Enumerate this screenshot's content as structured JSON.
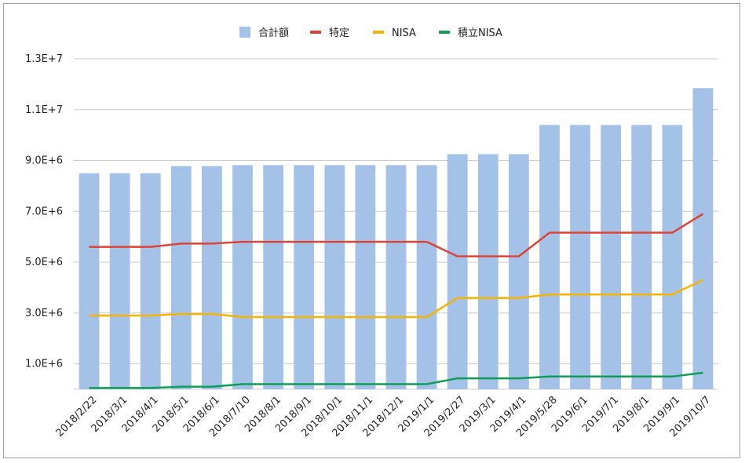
{
  "chart_data": {
    "type": "bar",
    "title": "",
    "xlabel": "",
    "ylabel": "",
    "ylim": [
      0,
      13000000
    ],
    "yticks": [
      1000000,
      3000000,
      5000000,
      7000000,
      9000000,
      11000000,
      13000000
    ],
    "ytick_labels": [
      "1.0E+6",
      "3.0E+6",
      "5.0E+6",
      "7.0E+6",
      "9.0E+6",
      "1.1E+7",
      "1.3E+7"
    ],
    "grid": true,
    "legend_position": "top",
    "categories": [
      "2018/2/22",
      "2018/3/1",
      "2018/4/1",
      "2018/5/1",
      "2018/6/1",
      "2018/7/10",
      "2018/8/1",
      "2018/9/1",
      "2018/10/1",
      "2018/11/1",
      "2018/12/1",
      "2019/1/1",
      "2019/2/27",
      "2019/3/1",
      "2019/4/1",
      "2019/5/28",
      "2019/6/1",
      "2019/7/1",
      "2019/8/1",
      "2019/9/1",
      "2019/10/7"
    ],
    "series": [
      {
        "name": "合計額",
        "kind": "bar",
        "color": "#a4c2e8",
        "values": [
          8500000,
          8500000,
          8500000,
          8780000,
          8780000,
          8820000,
          8820000,
          8820000,
          8820000,
          8820000,
          8820000,
          8820000,
          9250000,
          9250000,
          9250000,
          10400000,
          10400000,
          10400000,
          10400000,
          10400000,
          11850000
        ]
      },
      {
        "name": "特定",
        "kind": "line",
        "color": "#db4437",
        "values": [
          5600000,
          5600000,
          5600000,
          5730000,
          5730000,
          5800000,
          5800000,
          5800000,
          5800000,
          5800000,
          5800000,
          5800000,
          5230000,
          5230000,
          5230000,
          6160000,
          6160000,
          6160000,
          6160000,
          6160000,
          6900000
        ]
      },
      {
        "name": "NISA",
        "kind": "line",
        "color": "#f4b400",
        "values": [
          2900000,
          2900000,
          2900000,
          2960000,
          2960000,
          2840000,
          2840000,
          2840000,
          2840000,
          2840000,
          2840000,
          2840000,
          3590000,
          3590000,
          3590000,
          3730000,
          3730000,
          3730000,
          3730000,
          3730000,
          4300000
        ]
      },
      {
        "name": "積立NISA",
        "kind": "line",
        "color": "#0f9d58",
        "values": [
          50000,
          50000,
          50000,
          100000,
          100000,
          200000,
          200000,
          200000,
          200000,
          200000,
          200000,
          200000,
          430000,
          430000,
          430000,
          500000,
          500000,
          500000,
          500000,
          500000,
          650000
        ]
      }
    ]
  }
}
